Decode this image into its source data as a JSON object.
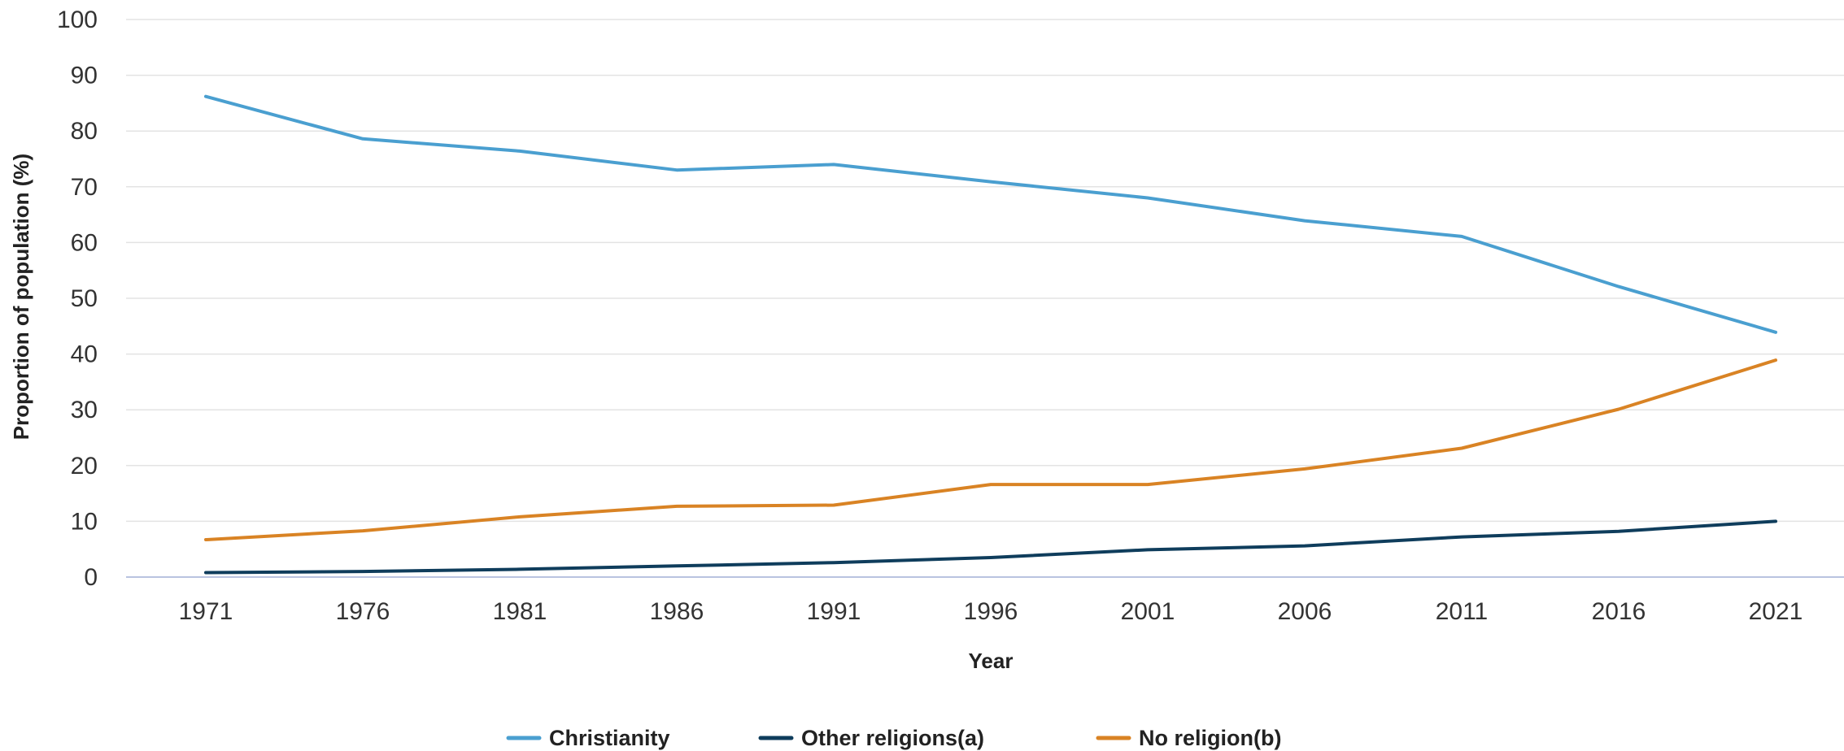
{
  "chart_data": {
    "type": "line",
    "title": "",
    "xlabel": "Year",
    "ylabel": "Proportion of population (%)",
    "ylim": [
      0,
      100
    ],
    "yticks": [
      "0",
      "10",
      "20",
      "30",
      "40",
      "50",
      "60",
      "70",
      "80",
      "90",
      "100"
    ],
    "categories": [
      "1971",
      "1976",
      "1981",
      "1986",
      "1991",
      "1996",
      "2001",
      "2006",
      "2011",
      "2016",
      "2021"
    ],
    "grid": true,
    "legend_position": "bottom",
    "series": [
      {
        "name": "Christianity",
        "color": "#4a9fd0",
        "values": [
          86.2,
          78.6,
          76.4,
          73.0,
          74.0,
          70.9,
          68.0,
          63.9,
          61.1,
          52.1,
          43.9
        ]
      },
      {
        "name": "Other religions(a)",
        "color": "#0f3d5c",
        "values": [
          0.8,
          1.0,
          1.4,
          2.0,
          2.6,
          3.5,
          4.9,
          5.6,
          7.2,
          8.2,
          10.0
        ]
      },
      {
        "name": "No religion(b)",
        "color": "#d98324",
        "values": [
          6.7,
          8.3,
          10.8,
          12.7,
          12.9,
          16.6,
          16.6,
          19.4,
          23.1,
          30.1,
          38.9
        ]
      }
    ]
  }
}
